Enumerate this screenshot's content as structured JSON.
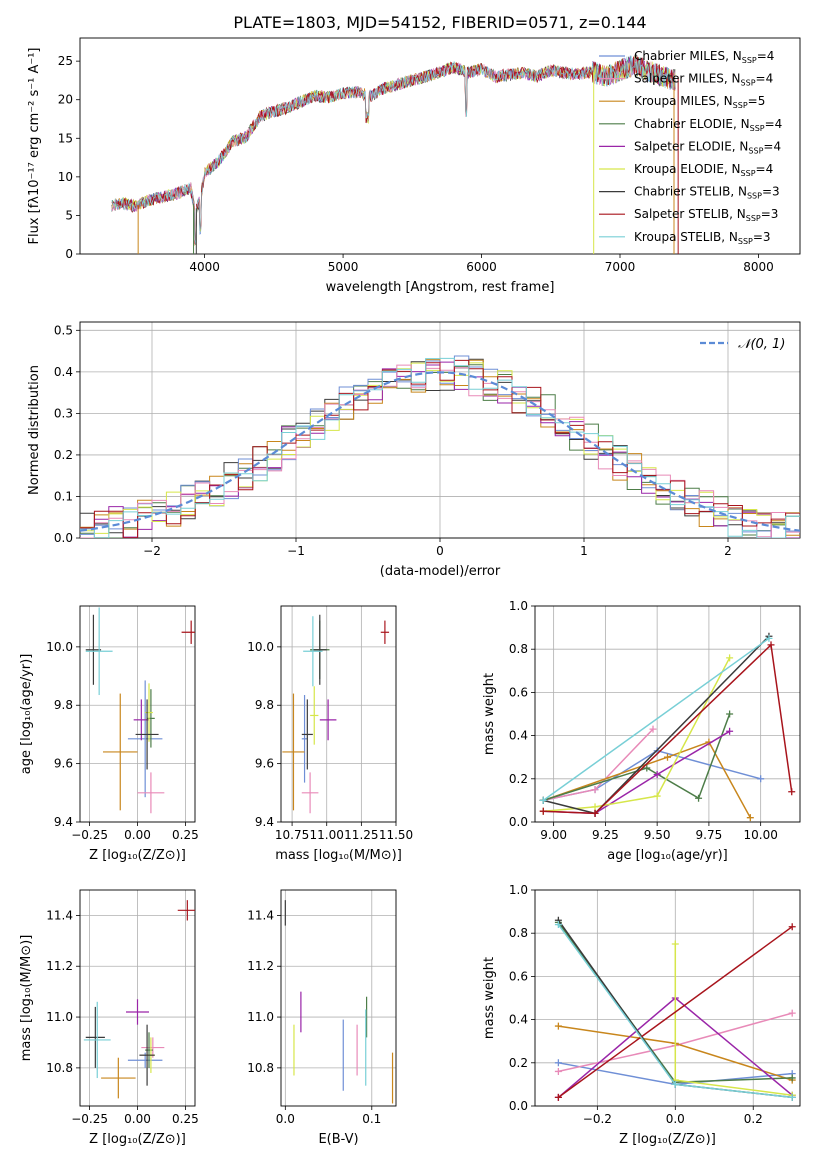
{
  "figure_title": "PLATE=1803, MJD=54152, FIBERID=0571, z=0.144",
  "series_legend": [
    {
      "name": "Chabrier MILES, N",
      "sub": "SSP",
      "tail": "=4",
      "color": "#6f8fd6"
    },
    {
      "name": "Salpeter MILES, N",
      "sub": "SSP",
      "tail": "=4",
      "color": "#e88ab8"
    },
    {
      "name": "Kroupa MILES, N",
      "sub": "SSP",
      "tail": "=5",
      "color": "#c8861c"
    },
    {
      "name": "Chabrier ELODIE, N",
      "sub": "SSP",
      "tail": "=4",
      "color": "#4d7d48"
    },
    {
      "name": "Salpeter ELODIE, N",
      "sub": "SSP",
      "tail": "=4",
      "color": "#9a25a8"
    },
    {
      "name": "Kroupa ELODIE, N",
      "sub": "SSP",
      "tail": "=4",
      "color": "#d6e64a"
    },
    {
      "name": "Chabrier STELIB, N",
      "sub": "SSP",
      "tail": "=3",
      "color": "#3b3b3b"
    },
    {
      "name": "Salpeter STELIB, N",
      "sub": "SSP",
      "tail": "=3",
      "color": "#a8141c"
    },
    {
      "name": "Kroupa STELIB, N",
      "sub": "SSP",
      "tail": "=3",
      "color": "#78cfd6"
    }
  ],
  "chart_data": [
    {
      "id": "spectrum",
      "type": "line",
      "xlabel": "wavelength [Angstrom, rest frame]",
      "ylabel": "Flux [fλ10⁻¹⁷ erg cm⁻² s⁻¹ A⁻¹]",
      "xlim": [
        3100,
        8300
      ],
      "ylim": [
        0,
        28
      ],
      "xticks": [
        4000,
        5000,
        6000,
        7000,
        8000
      ],
      "yticks": [
        0,
        5,
        10,
        15,
        20,
        25
      ],
      "continuum": [
        [
          3330,
          6.3
        ],
        [
          3400,
          6.6
        ],
        [
          3500,
          6.2
        ],
        [
          3600,
          7.0
        ],
        [
          3700,
          7.4
        ],
        [
          3800,
          7.8
        ],
        [
          3900,
          8.6
        ],
        [
          3930,
          5.5
        ],
        [
          3970,
          7.2
        ],
        [
          4000,
          10.5
        ],
        [
          4100,
          12.0
        ],
        [
          4200,
          14.5
        ],
        [
          4300,
          15.2
        ],
        [
          4350,
          16.5
        ],
        [
          4400,
          17.8
        ],
        [
          4500,
          18.5
        ],
        [
          4600,
          19.0
        ],
        [
          4700,
          19.8
        ],
        [
          4800,
          20.5
        ],
        [
          4900,
          20.3
        ],
        [
          5000,
          20.8
        ],
        [
          5100,
          21.0
        ],
        [
          5200,
          20.5
        ],
        [
          5300,
          21.5
        ],
        [
          5400,
          22.0
        ],
        [
          5500,
          22.5
        ],
        [
          5600,
          23.0
        ],
        [
          5700,
          23.6
        ],
        [
          5800,
          24.2
        ],
        [
          5900,
          23.5
        ],
        [
          6000,
          24.0
        ],
        [
          6100,
          23.0
        ],
        [
          6200,
          23.2
        ],
        [
          6300,
          23.5
        ],
        [
          6400,
          23.0
        ],
        [
          6500,
          23.8
        ],
        [
          6600,
          23.5
        ],
        [
          6700,
          23.3
        ],
        [
          6800,
          23.6
        ],
        [
          6900,
          23.0
        ],
        [
          7000,
          23.8
        ],
        [
          7100,
          24.5
        ],
        [
          7200,
          23.8
        ],
        [
          7300,
          23.0
        ],
        [
          7400,
          22.5
        ]
      ]
    },
    {
      "id": "residuals",
      "type": "bar",
      "xlabel": "(data-model)/error",
      "ylabel": "Normed distribution",
      "xlim": [
        -2.5,
        2.5
      ],
      "ylim": [
        0,
        0.52
      ],
      "xticks": [
        -2,
        -1,
        0,
        1,
        2
      ],
      "yticks": [
        0.0,
        0.1,
        0.2,
        0.3,
        0.4,
        0.5
      ],
      "bins": {
        "start": -2.5,
        "width": 0.1,
        "count": 50
      },
      "normal_label": "𝒩(0, 1)"
    },
    {
      "id": "age_vs_Z",
      "type": "scatter",
      "xlabel": "Z [log₁₀(Z/Z⊙)]",
      "ylabel": "age  [log₁₀(age/yr)]",
      "xlim": [
        -0.3,
        0.3
      ],
      "ylim": [
        9.4,
        10.14
      ],
      "xticks": [
        -0.25,
        0.0,
        0.25
      ],
      "yticks": [
        9.4,
        9.6,
        9.8,
        10.0
      ],
      "points": [
        {
          "series": 0,
          "x": 0.04,
          "y": 9.685,
          "xerr": 0.09,
          "yerr": 0.2
        },
        {
          "series": 1,
          "x": 0.07,
          "y": 9.5,
          "xerr": 0.07,
          "yerr": 0.07
        },
        {
          "series": 2,
          "x": -0.09,
          "y": 9.64,
          "xerr": 0.09,
          "yerr": 0.2
        },
        {
          "series": 3,
          "x": 0.07,
          "y": 9.755,
          "xerr": 0.02,
          "yerr": 0.1
        },
        {
          "series": 4,
          "x": 0.02,
          "y": 9.75,
          "xerr": 0.04,
          "yerr": 0.07
        },
        {
          "series": 5,
          "x": 0.06,
          "y": 9.775,
          "xerr": 0.02,
          "yerr": 0.1
        },
        {
          "series": 6,
          "x": -0.23,
          "y": 9.99,
          "xerr": 0.04,
          "yerr": 0.12
        },
        {
          "series": 7,
          "x": 0.28,
          "y": 10.05,
          "xerr": 0.05,
          "yerr": 0.04
        },
        {
          "series": 8,
          "x": -0.2,
          "y": 9.985,
          "xerr": 0.07,
          "yerr": 0.15
        },
        {
          "series": 6,
          "x": 0.05,
          "y": 9.7,
          "xerr": 0.06,
          "yerr": 0.12
        }
      ]
    },
    {
      "id": "age_vs_mass",
      "type": "scatter",
      "xlabel": "mass [log₁₀(M/M⊙)]",
      "ylabel": "",
      "xlim": [
        10.67,
        11.5
      ],
      "ylim": [
        9.4,
        10.14
      ],
      "xticks": [
        10.75,
        11.0,
        11.25,
        11.5
      ],
      "yticks": [
        9.4,
        9.6,
        9.8,
        10.0
      ],
      "points": [
        {
          "series": 0,
          "x": 10.84,
          "y": 9.685,
          "xerr": 0.02,
          "yerr": 0.15
        },
        {
          "series": 1,
          "x": 10.88,
          "y": 9.5,
          "xerr": 0.06,
          "yerr": 0.07
        },
        {
          "series": 2,
          "x": 10.76,
          "y": 9.64,
          "xerr": 0.08,
          "yerr": 0.2
        },
        {
          "series": 3,
          "x": 10.95,
          "y": 9.99,
          "xerr": 0.07,
          "yerr": 0.1
        },
        {
          "series": 4,
          "x": 11.01,
          "y": 9.75,
          "xerr": 0.06,
          "yerr": 0.07
        },
        {
          "series": 5,
          "x": 10.91,
          "y": 9.765,
          "xerr": 0.03,
          "yerr": 0.1
        },
        {
          "series": 6,
          "x": 10.95,
          "y": 9.99,
          "xerr": 0.05,
          "yerr": 0.12
        },
        {
          "series": 7,
          "x": 11.42,
          "y": 10.05,
          "xerr": 0.03,
          "yerr": 0.04
        },
        {
          "series": 8,
          "x": 10.9,
          "y": 9.985,
          "xerr": 0.07,
          "yerr": 0.12
        },
        {
          "series": 6,
          "x": 10.86,
          "y": 9.7,
          "xerr": 0.04,
          "yerr": 0.12
        }
      ]
    },
    {
      "id": "weight_vs_age",
      "type": "line",
      "xlabel": "age  [log₁₀(age/yr)]",
      "ylabel": "mass weight",
      "xlim": [
        8.91,
        10.19
      ],
      "ylim": [
        0,
        1.0
      ],
      "xticks": [
        9.0,
        9.25,
        9.5,
        9.75,
        10.0
      ],
      "yticks": [
        0.0,
        0.2,
        0.4,
        0.6,
        0.8,
        1.0
      ],
      "series": [
        {
          "series": 0,
          "x": [
            8.95,
            9.2,
            9.5,
            10.0
          ],
          "y": [
            0.1,
            0.15,
            0.33,
            0.2
          ]
        },
        {
          "series": 1,
          "x": [
            8.95,
            9.2,
            9.48
          ],
          "y": [
            0.1,
            0.15,
            0.43
          ]
        },
        {
          "series": 2,
          "x": [
            8.95,
            9.55,
            9.75,
            9.95
          ],
          "y": [
            0.1,
            0.3,
            0.37,
            0.02
          ]
        },
        {
          "series": 3,
          "x": [
            8.95,
            9.45,
            9.7,
            9.85
          ],
          "y": [
            0.1,
            0.25,
            0.11,
            0.5
          ]
        },
        {
          "series": 4,
          "x": [
            8.95,
            9.2,
            9.5,
            9.85
          ],
          "y": [
            0.05,
            0.04,
            0.22,
            0.42
          ]
        },
        {
          "series": 5,
          "x": [
            8.95,
            9.2,
            9.5,
            9.85
          ],
          "y": [
            0.05,
            0.07,
            0.12,
            0.76
          ]
        },
        {
          "series": 6,
          "x": [
            8.95,
            9.2,
            10.04
          ],
          "y": [
            0.1,
            0.04,
            0.86
          ]
        },
        {
          "series": 7,
          "x": [
            8.95,
            9.2,
            10.05,
            10.15
          ],
          "y": [
            0.05,
            0.04,
            0.82,
            0.14
          ]
        },
        {
          "series": 8,
          "x": [
            8.95,
            10.04
          ],
          "y": [
            0.1,
            0.85
          ]
        }
      ]
    },
    {
      "id": "mass_vs_Z",
      "type": "scatter",
      "xlabel": "Z [log₁₀(Z/Z⊙)]",
      "ylabel": "mass [log₁₀(M/M⊙)]",
      "xlim": [
        -0.3,
        0.3
      ],
      "ylim": [
        10.65,
        11.5
      ],
      "xticks": [
        -0.25,
        0.0,
        0.25
      ],
      "yticks": [
        10.8,
        11.0,
        11.2,
        11.4
      ],
      "points": [
        {
          "series": 0,
          "x": 0.04,
          "y": 10.83,
          "xerr": 0.09,
          "yerr": 0.03
        },
        {
          "series": 1,
          "x": 0.08,
          "y": 10.88,
          "xerr": 0.06,
          "yerr": 0.04
        },
        {
          "series": 2,
          "x": -0.1,
          "y": 10.76,
          "xerr": 0.09,
          "yerr": 0.08
        },
        {
          "series": 3,
          "x": 0.06,
          "y": 10.87,
          "xerr": 0.02,
          "yerr": 0.07
        },
        {
          "series": 4,
          "x": 0.0,
          "y": 11.02,
          "xerr": 0.06,
          "yerr": 0.05
        },
        {
          "series": 5,
          "x": 0.07,
          "y": 10.85,
          "xerr": 0.02,
          "yerr": 0.07
        },
        {
          "series": 6,
          "x": -0.22,
          "y": 10.92,
          "xerr": 0.05,
          "yerr": 0.12
        },
        {
          "series": 7,
          "x": 0.26,
          "y": 11.42,
          "xerr": 0.05,
          "yerr": 0.04
        },
        {
          "series": 8,
          "x": -0.21,
          "y": 10.91,
          "xerr": 0.07,
          "yerr": 0.15
        },
        {
          "series": 6,
          "x": 0.05,
          "y": 10.85,
          "xerr": 0.04,
          "yerr": 0.12
        }
      ]
    },
    {
      "id": "mass_vs_ebv",
      "type": "scatter",
      "xlabel": "E(B-V)",
      "ylabel": "",
      "xlim": [
        -0.005,
        0.128
      ],
      "ylim": [
        10.65,
        11.5
      ],
      "xticks": [
        0.0,
        0.1
      ],
      "yticks": [
        10.8,
        11.0,
        11.2,
        11.4
      ],
      "points": [
        {
          "series": 6,
          "x": 0.0,
          "y": 11.41,
          "xerr": 0,
          "yerr": 0.05
        },
        {
          "series": 4,
          "x": 0.018,
          "y": 11.02,
          "xerr": 0,
          "yerr": 0.08
        },
        {
          "series": 5,
          "x": 0.01,
          "y": 10.87,
          "xerr": 0,
          "yerr": 0.1
        },
        {
          "series": 0,
          "x": 0.067,
          "y": 10.85,
          "xerr": 0,
          "yerr": 0.14
        },
        {
          "series": 1,
          "x": 0.083,
          "y": 10.87,
          "xerr": 0,
          "yerr": 0.1
        },
        {
          "series": 3,
          "x": 0.094,
          "y": 11.0,
          "xerr": 0,
          "yerr": 0.08
        },
        {
          "series": 8,
          "x": 0.093,
          "y": 10.88,
          "xerr": 0,
          "yerr": 0.15
        },
        {
          "series": 2,
          "x": 0.124,
          "y": 10.76,
          "xerr": 0,
          "yerr": 0.1
        }
      ]
    },
    {
      "id": "weight_vs_Z",
      "type": "line",
      "xlabel": "Z [log₁₀(Z/Z⊙)]",
      "ylabel": "mass weight",
      "xlim": [
        -0.36,
        0.32
      ],
      "ylim": [
        0,
        1.0
      ],
      "xticks": [
        -0.2,
        0.0,
        0.2
      ],
      "yticks": [
        0.0,
        0.2,
        0.4,
        0.6,
        0.8,
        1.0
      ],
      "series": [
        {
          "series": 0,
          "x": [
            -0.3,
            0.0,
            0.3
          ],
          "y": [
            0.2,
            0.1,
            0.15
          ]
        },
        {
          "series": 1,
          "x": [
            -0.3,
            0.0,
            0.3
          ],
          "y": [
            0.16,
            0.28,
            0.43
          ]
        },
        {
          "series": 2,
          "x": [
            -0.3,
            0.0,
            0.3
          ],
          "y": [
            0.37,
            0.29,
            0.12
          ]
        },
        {
          "series": 3,
          "x": [
            -0.3,
            0.0,
            0.3
          ],
          "y": [
            0.85,
            0.11,
            0.13
          ]
        },
        {
          "series": 4,
          "x": [
            -0.3,
            0.0,
            0.3
          ],
          "y": [
            0.04,
            0.5,
            0.05
          ]
        },
        {
          "series": 5,
          "x": [
            0.0,
            0.0,
            0.3
          ],
          "y": [
            0.75,
            0.12,
            0.05
          ]
        },
        {
          "series": 6,
          "x": [
            -0.3,
            0.0,
            0.3
          ],
          "y": [
            0.86,
            0.1,
            0.04
          ]
        },
        {
          "series": 7,
          "x": [
            -0.3,
            0.3
          ],
          "y": [
            0.04,
            0.83
          ]
        },
        {
          "series": 8,
          "x": [
            -0.3,
            0.0,
            0.3
          ],
          "y": [
            0.84,
            0.1,
            0.04
          ]
        }
      ]
    }
  ]
}
